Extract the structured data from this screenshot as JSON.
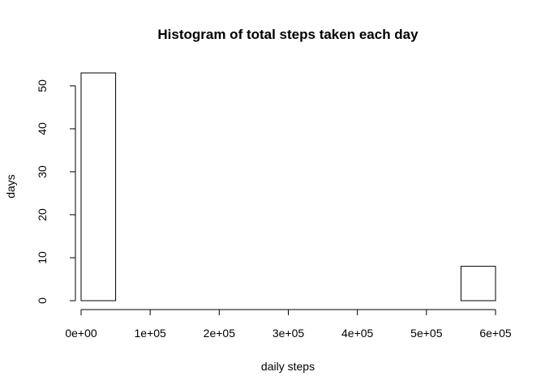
{
  "chart_data": {
    "type": "bar",
    "title": "Histogram of total steps taken each day",
    "xlabel": "daily steps",
    "ylabel": "days",
    "bin_edges": [
      0,
      50000,
      100000,
      150000,
      200000,
      250000,
      300000,
      350000,
      400000,
      450000,
      500000,
      550000,
      600000
    ],
    "values": [
      53,
      0,
      0,
      0,
      0,
      0,
      0,
      0,
      0,
      0,
      0,
      8
    ],
    "xlim": [
      0,
      600000
    ],
    "ylim": [
      0,
      53
    ],
    "x_ticks": [
      0,
      100000,
      200000,
      300000,
      400000,
      500000,
      600000
    ],
    "x_tick_labels": [
      "0e+00",
      "1e+05",
      "2e+05",
      "3e+05",
      "4e+05",
      "5e+05",
      "6e+05"
    ],
    "y_ticks": [
      0,
      10,
      20,
      30,
      40,
      50
    ],
    "y_tick_labels": [
      "0",
      "10",
      "20",
      "30",
      "40",
      "50"
    ],
    "grid": false,
    "legend": "none"
  }
}
